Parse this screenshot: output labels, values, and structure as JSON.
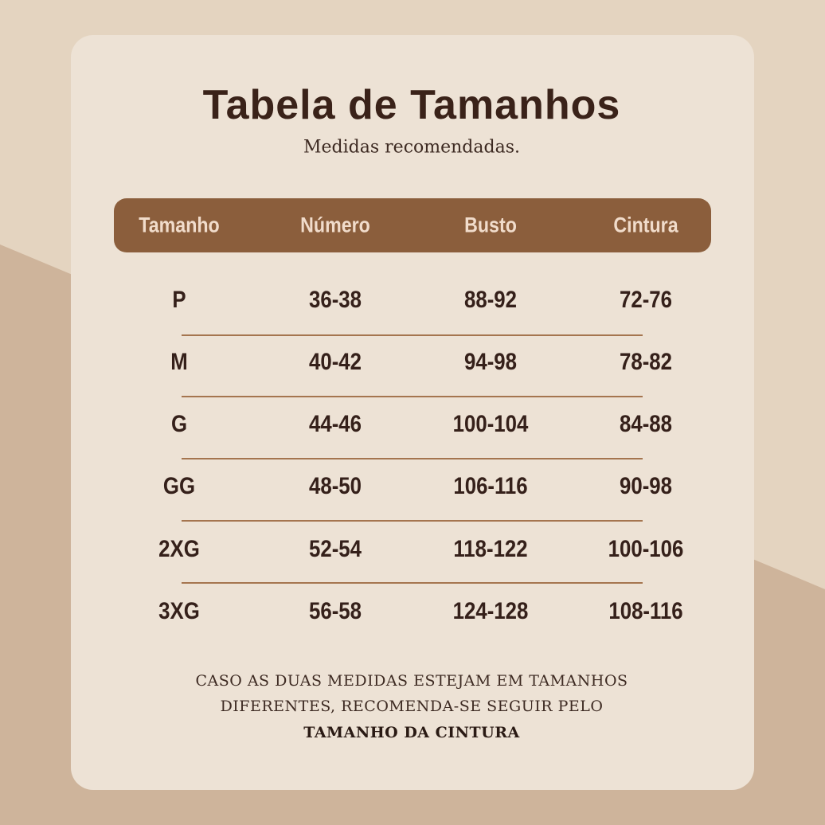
{
  "title": "Tabela de Tamanhos",
  "subtitle": "Medidas recomendadas.",
  "colors": {
    "background": "#e4d4c0",
    "card": "#ede2d5",
    "header": "#8b5e3c",
    "text": "#35201a"
  },
  "table": {
    "headers": [
      "Tamanho",
      "Número",
      "Busto",
      "Cintura"
    ],
    "rows": [
      [
        "P",
        "36-38",
        "88-92",
        "72-76"
      ],
      [
        "M",
        "40-42",
        "94-98",
        "78-82"
      ],
      [
        "G",
        "44-46",
        "100-104",
        "84-88"
      ],
      [
        "GG",
        "48-50",
        "106-116",
        "90-98"
      ],
      [
        "2XG",
        "52-54",
        "118-122",
        "100-106"
      ],
      [
        "3XG",
        "56-58",
        "124-128",
        "108-116"
      ]
    ]
  },
  "note": {
    "line1": "CASO AS DUAS MEDIDAS ESTEJAM EM TAMANHOS",
    "line2": "DIFERENTES, RECOMENDA-SE SEGUIR PELO",
    "line3": "TAMANHO DA CINTURA"
  }
}
